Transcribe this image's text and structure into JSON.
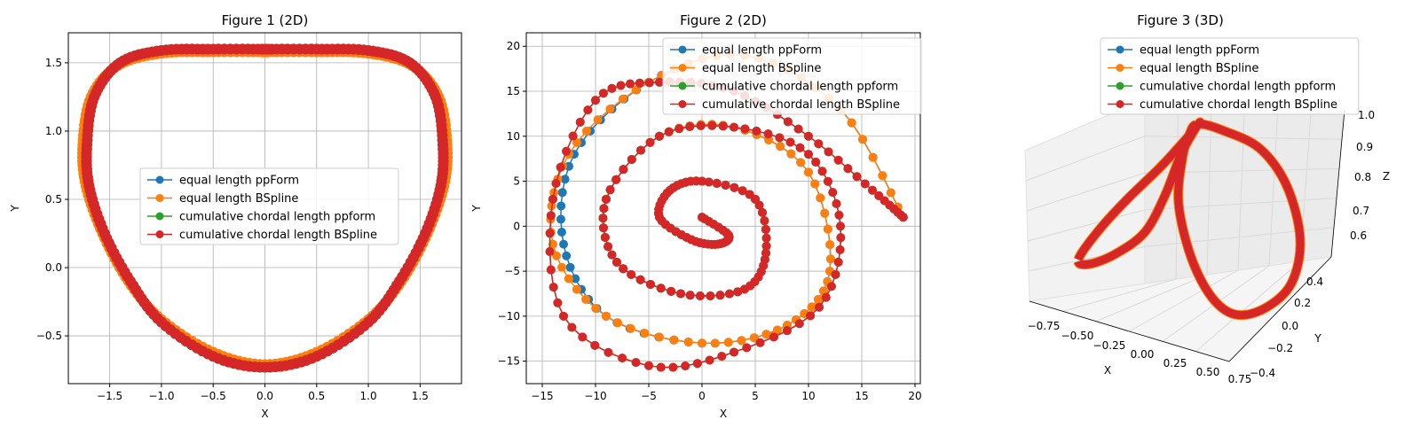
{
  "chart_data": [
    {
      "type": "line",
      "title": "Figure 1 (2D)",
      "xlabel": "X",
      "ylabel": "Y",
      "xlim": [
        -1.9,
        1.9
      ],
      "ylim": [
        -0.85,
        1.72
      ],
      "xticks": [
        -1.5,
        -1.0,
        -0.5,
        0.0,
        0.5,
        1.0,
        1.5
      ],
      "xtick_labels": [
        "−1.5",
        "−1.0",
        "−0.5",
        "0.0",
        "0.5",
        "1.0",
        "1.5"
      ],
      "yticks": [
        -0.5,
        0.0,
        0.5,
        1.0,
        1.5
      ],
      "ytick_labels": [
        "−0.5",
        "0.0",
        "0.5",
        "1.0",
        "1.5"
      ],
      "grid": true,
      "legend": "center",
      "series": [
        {
          "name": "equal length ppForm",
          "color": "#1f77b4",
          "x": [
            0.0,
            0.5,
            1.0,
            1.4,
            1.65,
            1.72,
            1.7,
            1.55,
            1.3,
            1.0,
            0.5,
            0.0,
            -0.5,
            -1.0,
            -1.3,
            -1.55,
            -1.7,
            -1.72,
            -1.65,
            -1.4,
            -1.0,
            -0.5,
            0.0
          ],
          "y": [
            1.6,
            1.6,
            1.59,
            1.5,
            1.25,
            0.9,
            0.6,
            0.25,
            -0.1,
            -0.4,
            -0.65,
            -0.73,
            -0.65,
            -0.4,
            -0.1,
            0.25,
            0.6,
            0.9,
            1.25,
            1.5,
            1.59,
            1.6,
            1.6
          ]
        },
        {
          "name": "equal length BSpline",
          "color": "#ff7f0e",
          "x": [
            0.0,
            0.5,
            1.0,
            1.42,
            1.68,
            1.76,
            1.73,
            1.57,
            1.32,
            1.0,
            0.5,
            0.0,
            -0.5,
            -1.0,
            -1.32,
            -1.57,
            -1.73,
            -1.76,
            -1.68,
            -1.42,
            -1.0,
            -0.5,
            0.0
          ],
          "y": [
            1.58,
            1.58,
            1.57,
            1.48,
            1.25,
            0.9,
            0.6,
            0.25,
            -0.1,
            -0.38,
            -0.62,
            -0.71,
            -0.62,
            -0.38,
            -0.1,
            0.25,
            0.6,
            0.9,
            1.25,
            1.48,
            1.57,
            1.58,
            1.58
          ]
        },
        {
          "name": "cumulative chordal length ppform",
          "color": "#2ca02c",
          "x": [
            0.0,
            0.5,
            1.0,
            1.4,
            1.65,
            1.72,
            1.7,
            1.55,
            1.3,
            1.0,
            0.5,
            0.0,
            -0.5,
            -1.0,
            -1.3,
            -1.55,
            -1.7,
            -1.72,
            -1.65,
            -1.4,
            -1.0,
            -0.5,
            0.0
          ],
          "y": [
            1.6,
            1.6,
            1.59,
            1.5,
            1.25,
            0.9,
            0.6,
            0.25,
            -0.1,
            -0.4,
            -0.65,
            -0.73,
            -0.65,
            -0.4,
            -0.1,
            0.25,
            0.6,
            0.9,
            1.25,
            1.5,
            1.59,
            1.6,
            1.6
          ]
        },
        {
          "name": "cumulative chordal length BSpline",
          "color": "#d62728",
          "x": [
            0.0,
            0.5,
            1.0,
            1.4,
            1.65,
            1.72,
            1.7,
            1.55,
            1.3,
            1.0,
            0.5,
            0.0,
            -0.5,
            -1.0,
            -1.3,
            -1.55,
            -1.7,
            -1.72,
            -1.65,
            -1.4,
            -1.0,
            -0.5,
            0.0
          ],
          "y": [
            1.6,
            1.6,
            1.59,
            1.5,
            1.25,
            0.9,
            0.6,
            0.25,
            -0.1,
            -0.4,
            -0.65,
            -0.73,
            -0.65,
            -0.4,
            -0.1,
            0.25,
            0.6,
            0.9,
            1.25,
            1.5,
            1.59,
            1.6,
            1.6
          ]
        }
      ]
    },
    {
      "type": "line",
      "title": "Figure 2 (2D)",
      "xlabel": "X",
      "ylabel": "Y",
      "xlim": [
        -16.5,
        20.5
      ],
      "ylim": [
        -17.5,
        21.5
      ],
      "xticks": [
        -15,
        -10,
        -5,
        0,
        5,
        10,
        15,
        20
      ],
      "xtick_labels": [
        "−15",
        "−10",
        "−5",
        "0",
        "5",
        "10",
        "15",
        "20"
      ],
      "yticks": [
        -15,
        -10,
        -5,
        0,
        5,
        10,
        15,
        20
      ],
      "ytick_labels": [
        "−15",
        "−10",
        "−5",
        "0",
        "5",
        "10",
        "15",
        "20"
      ],
      "grid": true,
      "legend": "upper center",
      "series": [
        {
          "name": "equal length ppForm",
          "color": "#1f77b4",
          "x": [
            0,
            2.5,
            1.5,
            -1,
            -4,
            -3,
            0,
            5,
            6,
            4,
            -2,
            -8,
            -9,
            -4,
            3,
            10,
            12,
            8,
            0,
            -9,
            -13,
            -12,
            -5,
            4,
            13,
            18.9
          ],
          "y": [
            1,
            -1,
            -2,
            -1.5,
            1,
            4,
            5,
            3,
            -3,
            -7,
            -7.5,
            -4,
            3,
            10,
            11,
            6,
            -5,
            -11,
            -13,
            -10,
            -2,
            8,
            16,
            19,
            13,
            1
          ]
        },
        {
          "name": "equal length BSpline",
          "color": "#ff7f0e",
          "x": [
            0,
            2.5,
            1.5,
            -1,
            -4,
            -3,
            0,
            5,
            6,
            4,
            -2,
            -8,
            -9,
            -4,
            3,
            10,
            12,
            8,
            0,
            -9,
            -14,
            -12.5,
            -5,
            4,
            13,
            18.9
          ],
          "y": [
            1,
            -1,
            -2,
            -1.5,
            1,
            4,
            5,
            3,
            -3,
            -7,
            -7.5,
            -4,
            3,
            10,
            11,
            6,
            -5,
            -11,
            -13,
            -10,
            -2,
            8,
            16,
            19,
            13,
            1
          ]
        },
        {
          "name": "cumulative chordal length ppform",
          "color": "#2ca02c",
          "x": [
            0,
            2.5,
            1.5,
            -1,
            -4,
            -3,
            0,
            5,
            6,
            4,
            -2,
            -8,
            -9,
            -4,
            3,
            10,
            13,
            11,
            3,
            -5,
            -13,
            -14,
            -10,
            -4,
            3,
            10,
            16,
            18.9
          ],
          "y": [
            1,
            -1,
            -2,
            -1.5,
            1,
            4,
            5,
            3,
            -3,
            -7,
            -7.5,
            -4,
            3,
            10,
            11,
            8,
            0,
            -9,
            -14,
            -15.5,
            -10,
            3,
            14,
            16,
            15,
            10,
            4,
            1
          ]
        },
        {
          "name": "cumulative chordal length BSpline",
          "color": "#d62728",
          "x": [
            0,
            2.5,
            1.5,
            -1,
            -4,
            -3,
            0,
            5,
            6,
            4,
            -2,
            -8,
            -9,
            -4,
            3,
            10,
            13,
            11,
            3,
            -5,
            -13,
            -14,
            -10,
            -4,
            3,
            10,
            16,
            18.9
          ],
          "y": [
            1,
            -1,
            -2,
            -1.5,
            1,
            4,
            5,
            3,
            -3,
            -7,
            -7.5,
            -4,
            3,
            10,
            11,
            8,
            0,
            -9,
            -14,
            -15.5,
            -10,
            3,
            14,
            16,
            15,
            10,
            4,
            1
          ]
        }
      ]
    },
    {
      "type": "line",
      "title": "Figure 3 (3D)",
      "xlabel": "X",
      "ylabel": "Y",
      "zlabel": "Z",
      "xlim": [
        -0.9,
        0.9
      ],
      "ylim": [
        -0.45,
        0.45
      ],
      "zlim": [
        0.55,
        1.0
      ],
      "xtick_labels": [
        "−0.75",
        "−0.50",
        "−0.25",
        "0.00",
        "0.25",
        "0.50",
        "0.75"
      ],
      "ytick_labels": [
        "−0.4",
        "−0.2",
        "0.0",
        "0.2",
        "0.4"
      ],
      "ztick_labels": [
        "0.6",
        "0.7",
        "0.8",
        "0.9",
        "1.0"
      ],
      "grid": true,
      "legend": "upper center",
      "series": [
        {
          "name": "equal length ppForm",
          "color": "#1f77b4"
        },
        {
          "name": "equal length BSpline",
          "color": "#ff7f0e"
        },
        {
          "name": "cumulative chordal length ppform",
          "color": "#2ca02c"
        },
        {
          "name": "cumulative chordal length BSpline",
          "color": "#d62728"
        }
      ]
    }
  ]
}
